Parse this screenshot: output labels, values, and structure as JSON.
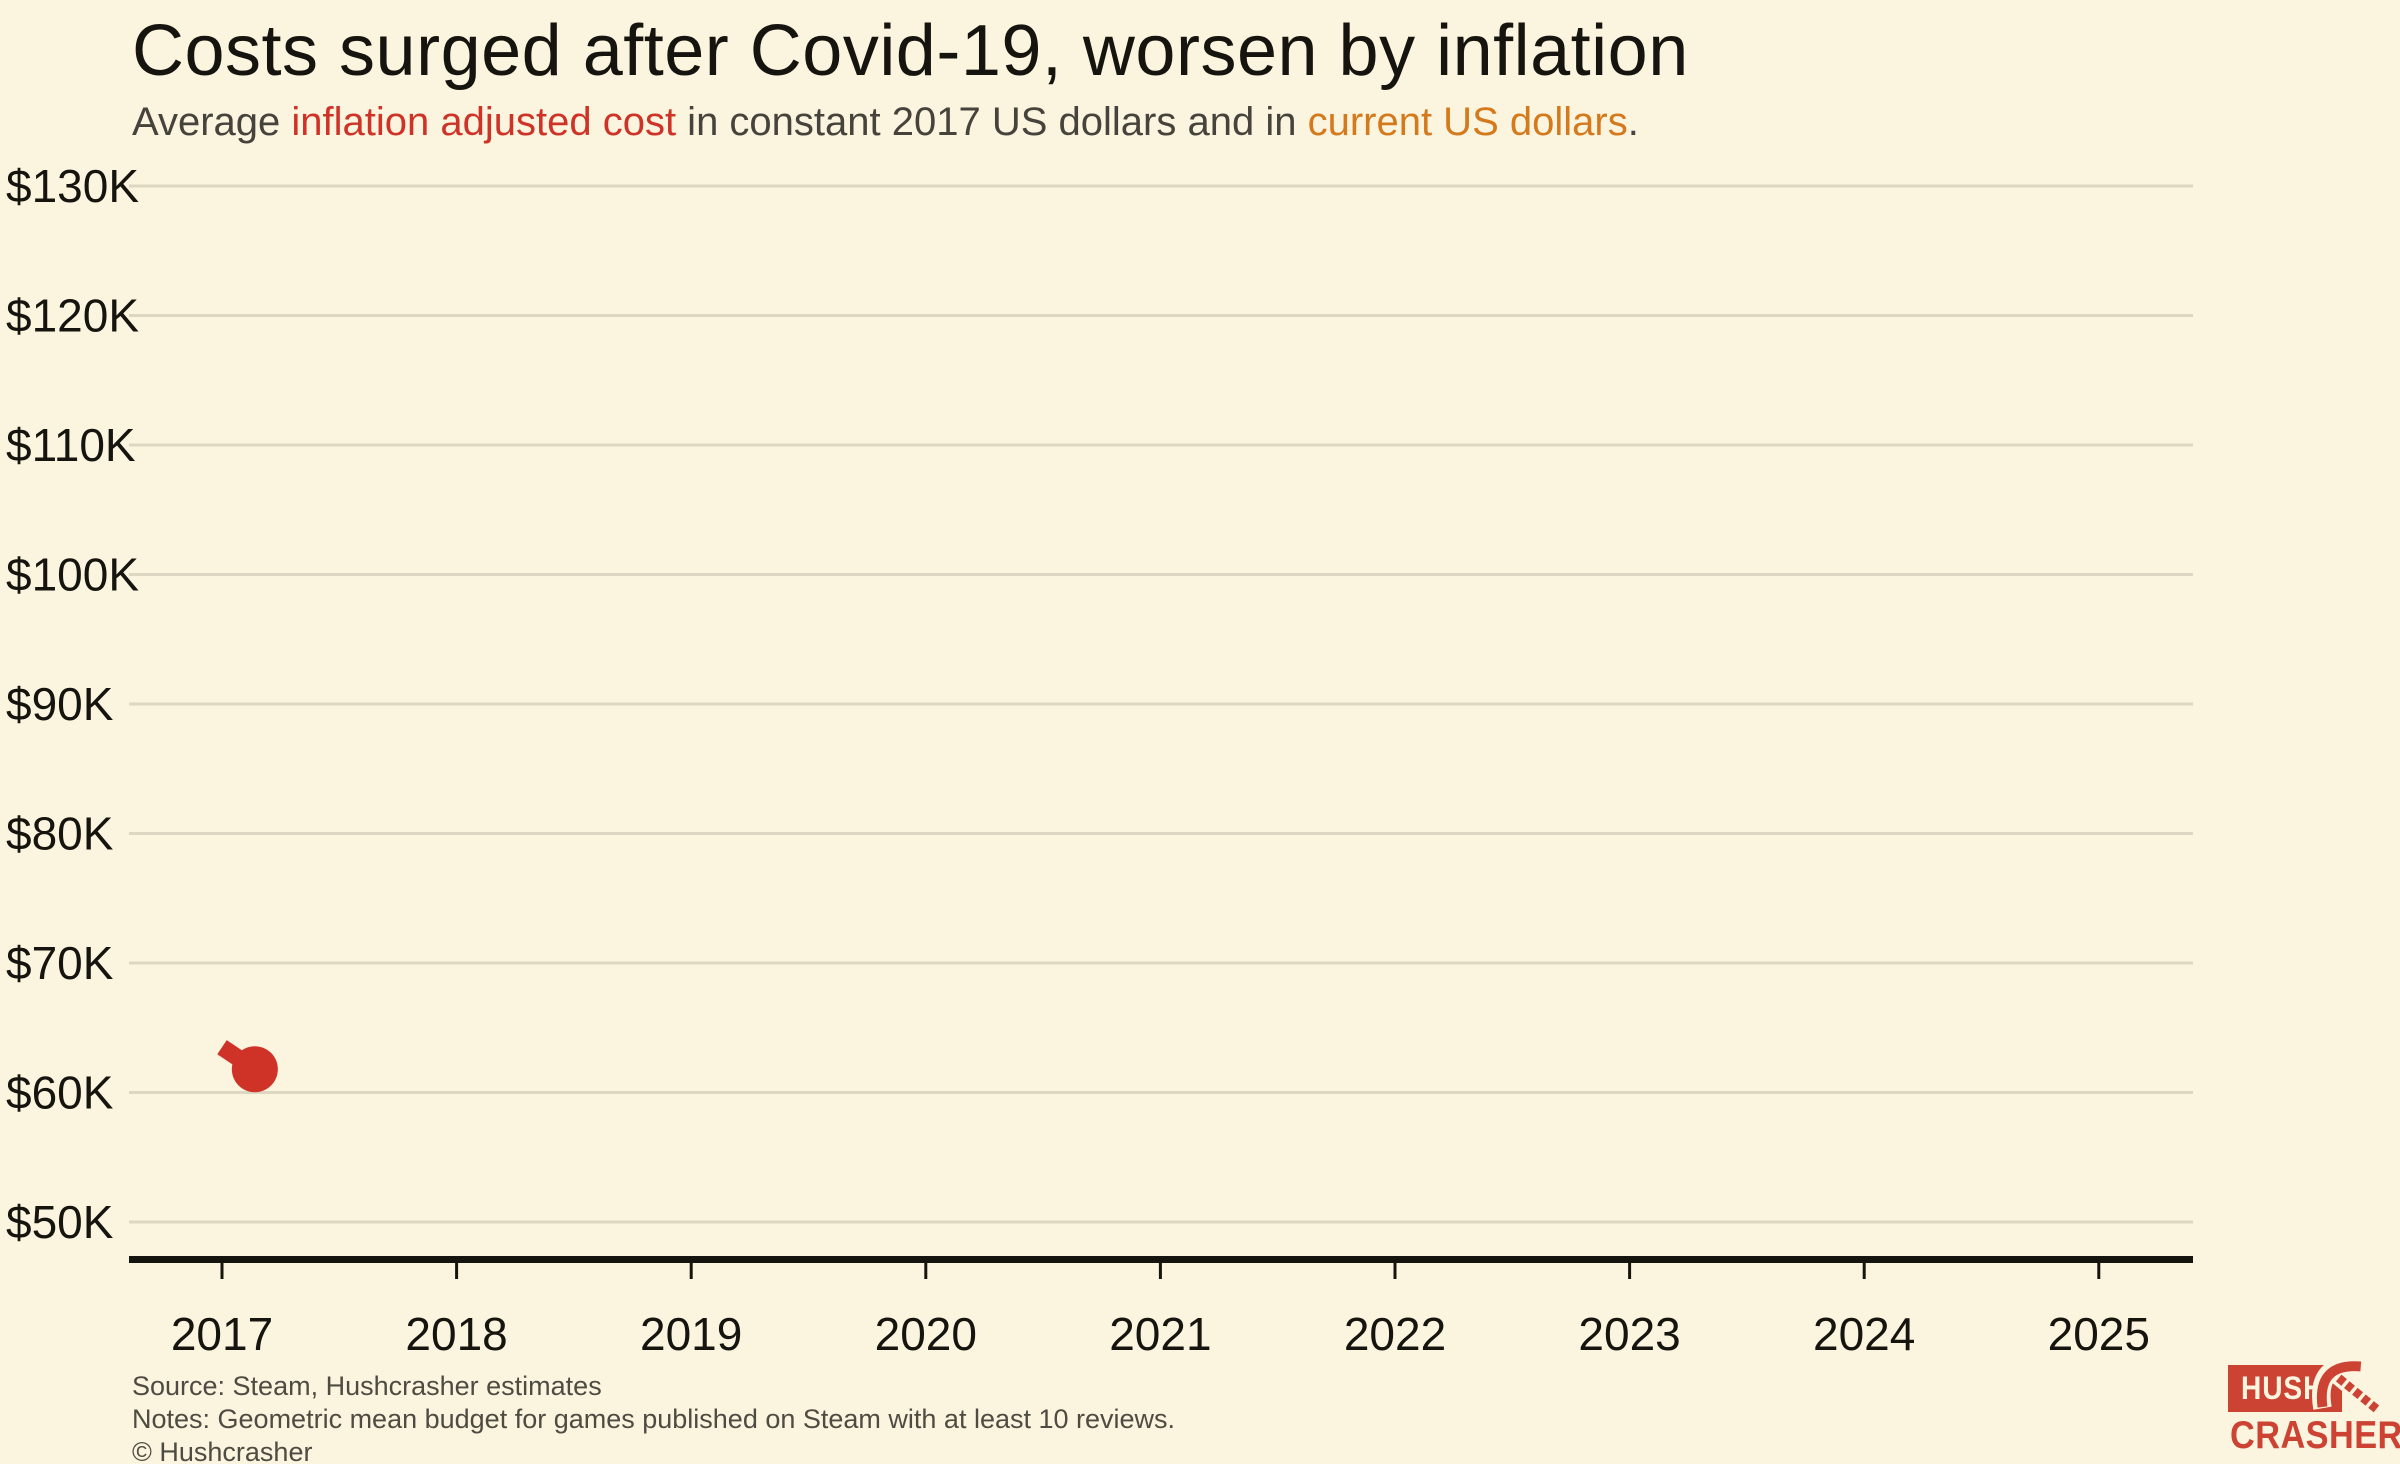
{
  "colors": {
    "background": "#FBF4DF",
    "grid": "#DCD6C2",
    "axis": "#16140E",
    "tick_text": "#16140E",
    "footer_text": "#4E4C42",
    "series_red": "#CF3327",
    "series_orange": "#D4791C",
    "logo_red": "#CC4233"
  },
  "header": {
    "title": "Costs surged after Covid-19, worsen by inflation",
    "subtitle_segments": [
      {
        "text": "Average ",
        "color": "#45433B"
      },
      {
        "text": "inflation adjusted cost",
        "color": "#CF3327"
      },
      {
        "text": " in constant 2017 US dollars and in ",
        "color": "#45433B"
      },
      {
        "text": "current US dollars",
        "color": "#D4791C"
      },
      {
        "text": ".",
        "color": "#45433B"
      }
    ]
  },
  "chart_data": {
    "type": "line",
    "title": "Costs surged after Covid-19, worsen by inflation",
    "subtitle": "Average inflation adjusted cost in constant 2017 US dollars and in current US dollars.",
    "xlabel": "",
    "ylabel": "",
    "xlim": [
      2016.6,
      2025.4
    ],
    "ylim": [
      50000,
      130000
    ],
    "grid": "horizontal",
    "legend_position": "none",
    "y_ticks": [
      {
        "value": 50000,
        "label": "$50K"
      },
      {
        "value": 60000,
        "label": "$60K"
      },
      {
        "value": 70000,
        "label": "$70K"
      },
      {
        "value": 80000,
        "label": "$80K"
      },
      {
        "value": 90000,
        "label": "$90K"
      },
      {
        "value": 100000,
        "label": "$100K"
      },
      {
        "value": 110000,
        "label": "$110K"
      },
      {
        "value": 120000,
        "label": "$120K"
      },
      {
        "value": 130000,
        "label": "$130K"
      }
    ],
    "x_ticks": [
      {
        "value": 2017,
        "label": "2017"
      },
      {
        "value": 2018,
        "label": "2018"
      },
      {
        "value": 2019,
        "label": "2019"
      },
      {
        "value": 2020,
        "label": "2020"
      },
      {
        "value": 2021,
        "label": "2021"
      },
      {
        "value": 2022,
        "label": "2022"
      },
      {
        "value": 2023,
        "label": "2023"
      },
      {
        "value": 2024,
        "label": "2024"
      },
      {
        "value": 2025,
        "label": "2025"
      }
    ],
    "series": [
      {
        "name": "inflation adjusted cost",
        "color": "#CF3327",
        "marker": "leading-dot",
        "points": [
          {
            "x": 2017.0,
            "y": 63500
          },
          {
            "x": 2017.14,
            "y": 61800
          }
        ]
      },
      {
        "name": "current US dollars",
        "color": "#D4791C",
        "marker": "leading-dot",
        "points": []
      }
    ]
  },
  "footer": {
    "source": "Source: Steam, Hushcrasher estimates",
    "notes": "Notes: Geometric mean budget for games published on Steam with at least 10 reviews.",
    "copyright": "© Hushcrasher"
  },
  "logo": {
    "top": "HUSH",
    "bottom": "CRASHER",
    "icon": "pickaxe-icon"
  }
}
